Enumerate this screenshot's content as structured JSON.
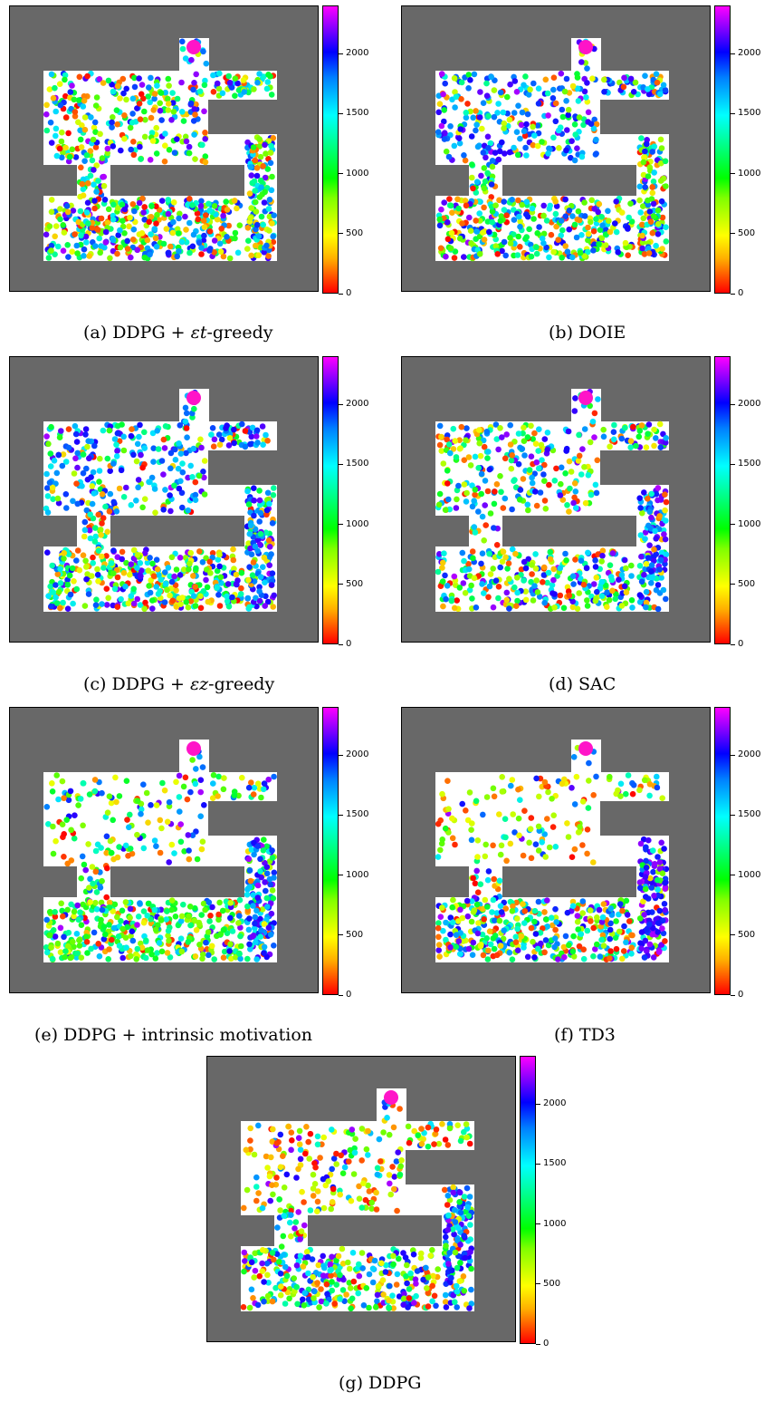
{
  "figure": {
    "colors": {
      "wall": "#686868",
      "floor": "#ffffff",
      "goal": "#ff14c8"
    },
    "colorbar_ticks": [
      "0",
      "500",
      "1000",
      "1500",
      "2000"
    ]
  },
  "chart_data": [
    {
      "type": "scatter",
      "caption_prefix": "(a) DDPG + ",
      "caption_math": "εt",
      "caption_suffix": "-greedy",
      "colorbar": {
        "ticks": [
          0,
          500,
          1000,
          1500,
          2000
        ],
        "range": [
          0,
          2400
        ]
      },
      "density": {
        "upper_room": 0.9,
        "corridor": 0.9,
        "right_shaft": 1.0,
        "bottom_room": 1.0
      },
      "color_bias": {
        "upper_room": "mixed",
        "right_shaft": "mixed",
        "bottom_room": "mixed"
      }
    },
    {
      "type": "scatter",
      "caption_prefix": "(b) DOIE",
      "caption_math": "",
      "caption_suffix": "",
      "colorbar": {
        "ticks": [
          0,
          500,
          1000,
          1500,
          2000
        ],
        "range": [
          0,
          2400
        ]
      },
      "density": {
        "upper_room": 0.85,
        "corridor": 0.9,
        "right_shaft": 0.9,
        "bottom_room": 0.95
      },
      "color_bias": {
        "upper_room": "blue",
        "right_shaft": "mixed",
        "bottom_room": "mixed"
      }
    },
    {
      "type": "scatter",
      "caption_prefix": "(c) DDPG + ",
      "caption_math": "εz",
      "caption_suffix": "-greedy",
      "colorbar": {
        "ticks": [
          0,
          500,
          1000,
          1500,
          2000
        ],
        "range": [
          0,
          2400
        ]
      },
      "density": {
        "upper_room": 0.8,
        "corridor": 0.9,
        "right_shaft": 1.0,
        "bottom_room": 1.0
      },
      "color_bias": {
        "upper_room": "blue",
        "right_shaft": "blue",
        "bottom_room": "mixed"
      }
    },
    {
      "type": "scatter",
      "caption_prefix": "(d) SAC",
      "caption_math": "",
      "caption_suffix": "",
      "colorbar": {
        "ticks": [
          0,
          500,
          1000,
          1500,
          2000
        ],
        "range": [
          0,
          2400
        ]
      },
      "density": {
        "upper_room": 0.8,
        "corridor": 0.4,
        "right_shaft": 0.9,
        "bottom_room": 0.75
      },
      "color_bias": {
        "upper_room": "mixed",
        "right_shaft": "blue",
        "bottom_room": "mixed"
      }
    },
    {
      "type": "scatter",
      "caption_prefix": "(e) DDPG + intrinsic motivation",
      "caption_math": "",
      "caption_suffix": "",
      "colorbar": {
        "ticks": [
          0,
          500,
          1000,
          1500,
          2000
        ],
        "range": [
          0,
          2400
        ]
      },
      "density": {
        "upper_room": 0.45,
        "corridor": 0.7,
        "right_shaft": 1.0,
        "bottom_room": 1.0
      },
      "color_bias": {
        "upper_room": "mixed",
        "right_shaft": "blue",
        "bottom_room": "green"
      }
    },
    {
      "type": "scatter",
      "caption_prefix": "(f) TD3",
      "caption_math": "",
      "caption_suffix": "",
      "colorbar": {
        "ticks": [
          0,
          500,
          1000,
          1500,
          2000
        ],
        "range": [
          0,
          2400
        ]
      },
      "density": {
        "upper_room": 0.4,
        "corridor": 0.6,
        "right_shaft": 1.0,
        "bottom_room": 1.0
      },
      "color_bias": {
        "upper_room": "warm",
        "right_shaft": "purple",
        "bottom_room": "mixed"
      }
    },
    {
      "type": "scatter",
      "caption_prefix": "(g) DDPG",
      "caption_math": "",
      "caption_suffix": "",
      "colorbar": {
        "ticks": [
          0,
          500,
          1000,
          1500,
          2000
        ],
        "range": [
          0,
          2400
        ]
      },
      "density": {
        "upper_room": 0.6,
        "corridor": 0.7,
        "right_shaft": 1.0,
        "bottom_room": 0.85
      },
      "color_bias": {
        "upper_room": "warm",
        "right_shaft": "blue",
        "bottom_room": "mixed"
      }
    }
  ]
}
